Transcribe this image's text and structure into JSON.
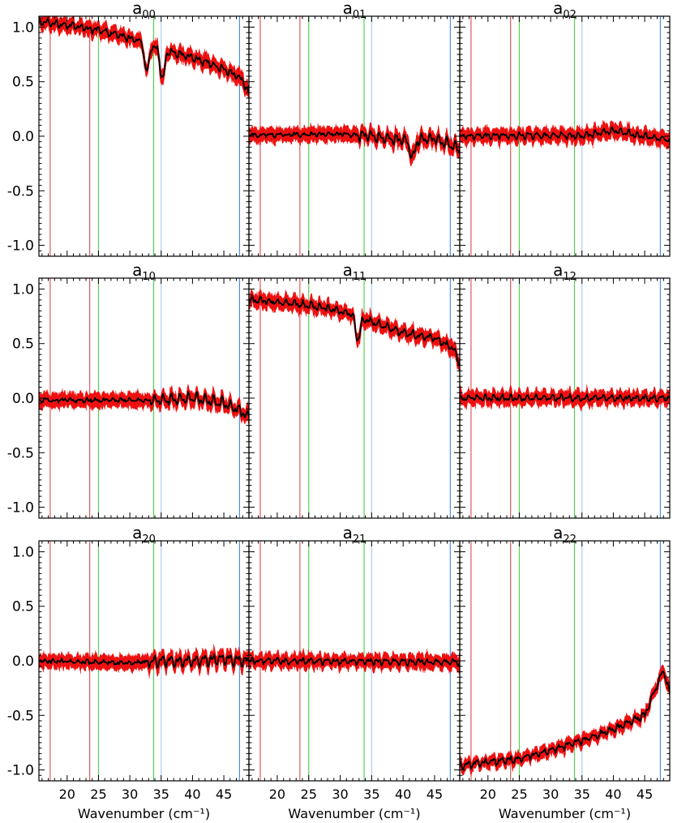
{
  "figure": {
    "xlabel": "Wavenumber (cm⁻¹)",
    "xticks": [
      20,
      25,
      30,
      35,
      40,
      45
    ],
    "yticks": [
      1.0,
      0.5,
      0.0,
      -0.5,
      -1.0
    ],
    "ytick_labels": [
      "1.0",
      "0.5",
      "0.0",
      "-0.5",
      "-1.0"
    ],
    "xlim": [
      15.5,
      49
    ],
    "ylim": [
      -1.1,
      1.1
    ],
    "vertical_markers": [
      {
        "x": 17.3,
        "color": "#e05a5a"
      },
      {
        "x": 23.6,
        "color": "#e05a5a"
      },
      {
        "x": 25.0,
        "color": "#58d058"
      },
      {
        "x": 33.8,
        "color": "#58d058"
      },
      {
        "x": 35.0,
        "color": "#a8cdf0"
      },
      {
        "x": 47.5,
        "color": "#4f93e0"
      }
    ],
    "colors": {
      "band": "#ee1111",
      "mean": "#000000",
      "axes": "#000000"
    }
  },
  "chart_data": [
    {
      "type": "line",
      "title_base": "a",
      "title_sub": "00",
      "trend": {
        "x": [
          15.5,
          20,
          25,
          30,
          35,
          40,
          45,
          48,
          49
        ],
        "y": [
          1.05,
          1.02,
          0.97,
          0.9,
          0.8,
          0.72,
          0.62,
          0.52,
          0.38
        ]
      },
      "band": 0.06,
      "notable_dips": [
        {
          "x": 32.7,
          "y": 0.58
        },
        {
          "x": 35.2,
          "y": 0.52
        }
      ]
    },
    {
      "type": "line",
      "title_base": "a",
      "title_sub": "01",
      "trend": {
        "x": [
          15.5,
          30,
          35,
          40,
          45,
          49
        ],
        "y": [
          0.01,
          0.02,
          0.0,
          -0.04,
          -0.02,
          -0.12
        ]
      },
      "band": 0.06,
      "notable_dips": [
        {
          "x": 41.5,
          "y": -0.2
        }
      ]
    },
    {
      "type": "line",
      "title_base": "a",
      "title_sub": "02",
      "trend": {
        "x": [
          15.5,
          30,
          35,
          40,
          45,
          49
        ],
        "y": [
          0.0,
          0.01,
          0.0,
          0.05,
          0.0,
          -0.03
        ]
      },
      "band": 0.06,
      "notable_dips": []
    },
    {
      "type": "line",
      "title_base": "a",
      "title_sub": "10",
      "trend": {
        "x": [
          15.5,
          30,
          35,
          40,
          45,
          49
        ],
        "y": [
          -0.02,
          -0.02,
          -0.02,
          0.0,
          -0.05,
          -0.15
        ]
      },
      "band": 0.06,
      "notable_dips": [
        {
          "x": 48.8,
          "y": -0.17
        }
      ]
    },
    {
      "type": "line",
      "title_base": "a",
      "title_sub": "11",
      "trend": {
        "x": [
          15.5,
          20,
          25,
          30,
          35,
          40,
          45,
          48,
          49
        ],
        "y": [
          0.9,
          0.88,
          0.85,
          0.8,
          0.7,
          0.6,
          0.55,
          0.45,
          0.32
        ]
      },
      "band": 0.06,
      "notable_dips": [
        {
          "x": 32.8,
          "y": 0.53
        }
      ]
    },
    {
      "type": "line",
      "title_base": "a",
      "title_sub": "12",
      "trend": {
        "x": [
          15.5,
          49
        ],
        "y": [
          0.0,
          0.0
        ]
      },
      "band": 0.06,
      "notable_dips": []
    },
    {
      "type": "line",
      "title_base": "a",
      "title_sub": "20",
      "trend": {
        "x": [
          15.5,
          30,
          35,
          40,
          45,
          49
        ],
        "y": [
          0.0,
          -0.02,
          0.0,
          0.0,
          0.02,
          0.0
        ]
      },
      "band": 0.06,
      "notable_dips": []
    },
    {
      "type": "line",
      "title_base": "a",
      "title_sub": "21",
      "trend": {
        "x": [
          15.5,
          49
        ],
        "y": [
          0.0,
          -0.01
        ]
      },
      "band": 0.06,
      "notable_dips": []
    },
    {
      "type": "line",
      "title_base": "a",
      "title_sub": "22",
      "trend": {
        "x": [
          15.5,
          20,
          25,
          30,
          35,
          40,
          45,
          48,
          49
        ],
        "y": [
          -0.96,
          -0.93,
          -0.9,
          -0.82,
          -0.73,
          -0.63,
          -0.5,
          -0.08,
          -0.3
        ]
      },
      "band": 0.05,
      "notable_dips": []
    }
  ]
}
